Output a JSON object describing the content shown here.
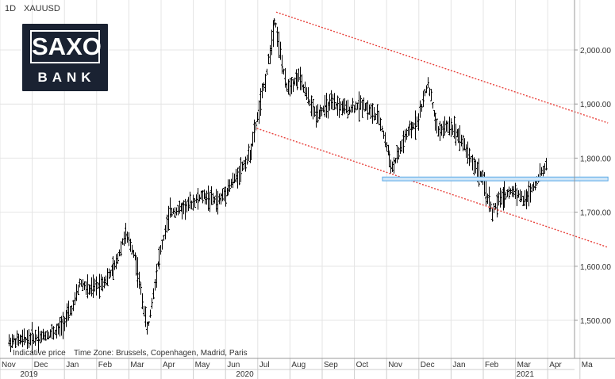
{
  "header": {
    "timeframe": "1D",
    "symbol": "XAUUSD"
  },
  "logo": {
    "top": "SAXO",
    "bottom": "BANK"
  },
  "footer": {
    "note": "Indicative price",
    "timezone": "Time Zone: Brussels, Copenhagen, Madrid, Paris"
  },
  "colors": {
    "candle": "#000000",
    "channel": "#e8403a",
    "support": "#5aa9e6",
    "grid": "#e4e4e4"
  },
  "chart_data": {
    "type": "ohlc",
    "instrument": "XAUUSD",
    "interval": "1D",
    "ylim": [
      1440,
      2080
    ],
    "y_ticks": [
      1500,
      1600,
      1700,
      1800,
      1900,
      2000
    ],
    "y_tick_labels": [
      "1,500.00",
      "1,600.00",
      "1,700.00",
      "1,800.00",
      "1,900.00",
      "2,000.00"
    ],
    "x_labels": [
      "Nov",
      "Dec",
      "Jan",
      "Feb",
      "Mar",
      "Apr",
      "May",
      "Jun",
      "Jul",
      "Aug",
      "Sep",
      "Oct",
      "Nov",
      "Dec",
      "Jan",
      "Feb",
      "Mar",
      "Apr",
      "Ma"
    ],
    "year_labels": [
      {
        "label": "2019",
        "month_index": 0.9
      },
      {
        "label": "2020",
        "month_index": 7.6
      },
      {
        "label": "2021",
        "month_index": 16.3
      }
    ],
    "approx_close_path": [
      {
        "t": 0.0,
        "p": 1460
      },
      {
        "t": 0.5,
        "p": 1465
      },
      {
        "t": 1.0,
        "p": 1470
      },
      {
        "t": 1.5,
        "p": 1480
      },
      {
        "t": 2.0,
        "p": 1525
      },
      {
        "t": 2.2,
        "p": 1570
      },
      {
        "t": 2.5,
        "p": 1555
      },
      {
        "t": 3.0,
        "p": 1575
      },
      {
        "t": 3.3,
        "p": 1600
      },
      {
        "t": 3.6,
        "p": 1660
      },
      {
        "t": 3.9,
        "p": 1620
      },
      {
        "t": 4.0,
        "p": 1590
      },
      {
        "t": 4.3,
        "p": 1480
      },
      {
        "t": 4.6,
        "p": 1600
      },
      {
        "t": 5.0,
        "p": 1700
      },
      {
        "t": 5.5,
        "p": 1710
      },
      {
        "t": 6.0,
        "p": 1730
      },
      {
        "t": 6.5,
        "p": 1720
      },
      {
        "t": 7.0,
        "p": 1760
      },
      {
        "t": 7.5,
        "p": 1810
      },
      {
        "t": 8.0,
        "p": 1960
      },
      {
        "t": 8.25,
        "p": 2060
      },
      {
        "t": 8.6,
        "p": 1930
      },
      {
        "t": 9.0,
        "p": 1950
      },
      {
        "t": 9.5,
        "p": 1880
      },
      {
        "t": 10.0,
        "p": 1900
      },
      {
        "t": 10.5,
        "p": 1890
      },
      {
        "t": 11.0,
        "p": 1900
      },
      {
        "t": 11.5,
        "p": 1870
      },
      {
        "t": 11.9,
        "p": 1780
      },
      {
        "t": 12.3,
        "p": 1840
      },
      {
        "t": 12.7,
        "p": 1870
      },
      {
        "t": 13.0,
        "p": 1940
      },
      {
        "t": 13.3,
        "p": 1850
      },
      {
        "t": 13.7,
        "p": 1860
      },
      {
        "t": 14.0,
        "p": 1840
      },
      {
        "t": 14.4,
        "p": 1790
      },
      {
        "t": 14.7,
        "p": 1760
      },
      {
        "t": 15.0,
        "p": 1700
      },
      {
        "t": 15.3,
        "p": 1730
      },
      {
        "t": 15.7,
        "p": 1740
      },
      {
        "t": 16.0,
        "p": 1720
      },
      {
        "t": 16.4,
        "p": 1760
      },
      {
        "t": 16.7,
        "p": 1790
      }
    ],
    "channel_lines": [
      {
        "name": "",
        "from": {
          "t": 8.3,
          "p": 2070
        },
        "to": {
          "t": 18.6,
          "p": 1865
        }
      },
      {
        "name": "",
        "from": {
          "t": 7.7,
          "p": 1855
        },
        "to": {
          "t": 18.6,
          "p": 1635
        }
      }
    ],
    "support_band": {
      "from_t": 11.6,
      "to_t": 18.6,
      "low": 1758,
      "high": 1765
    }
  }
}
